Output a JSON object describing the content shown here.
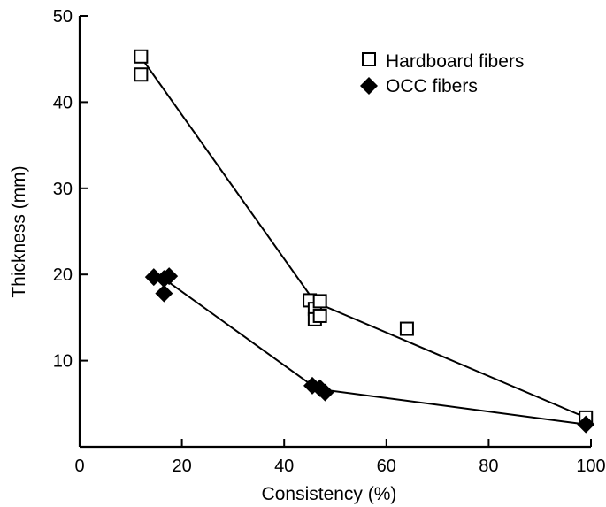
{
  "chart_data": {
    "type": "scatter",
    "xlabel": "Consistency (%)",
    "ylabel": "Thickness (mm)",
    "xlim": [
      0,
      100
    ],
    "ylim": [
      0,
      50
    ],
    "xticks": [
      0,
      20,
      40,
      60,
      80,
      100
    ],
    "yticks": [
      10,
      20,
      30,
      40,
      50
    ],
    "grid": false,
    "legend_position": "top-right",
    "series": [
      {
        "name": "Hardboard fibers",
        "marker": "open-square",
        "points": [
          {
            "x": 12,
            "y": 45.3
          },
          {
            "x": 12,
            "y": 43.2
          },
          {
            "x": 45,
            "y": 17.0
          },
          {
            "x": 46,
            "y": 16.0
          },
          {
            "x": 47,
            "y": 16.9
          },
          {
            "x": 46,
            "y": 14.8
          },
          {
            "x": 47,
            "y": 15.2
          },
          {
            "x": 64,
            "y": 13.7
          },
          {
            "x": 99,
            "y": 3.4
          }
        ],
        "fit_line": [
          {
            "x": 12,
            "y": 45.2
          },
          {
            "x": 46,
            "y": 16.8
          },
          {
            "x": 99,
            "y": 3.4
          }
        ]
      },
      {
        "name": "OCC fibers",
        "marker": "filled-diamond",
        "points": [
          {
            "x": 14.5,
            "y": 19.7
          },
          {
            "x": 16.5,
            "y": 19.5
          },
          {
            "x": 17.5,
            "y": 19.8
          },
          {
            "x": 16.5,
            "y": 17.8
          },
          {
            "x": 45.5,
            "y": 7.1
          },
          {
            "x": 47,
            "y": 6.8
          },
          {
            "x": 48,
            "y": 6.3
          },
          {
            "x": 99,
            "y": 2.6
          }
        ],
        "fit_line": [
          {
            "x": 16.5,
            "y": 19.5
          },
          {
            "x": 46,
            "y": 6.9
          },
          {
            "x": 48,
            "y": 6.6
          },
          {
            "x": 99,
            "y": 2.6
          }
        ]
      }
    ]
  },
  "colors": {
    "ink": "#000000",
    "background": "#ffffff"
  }
}
